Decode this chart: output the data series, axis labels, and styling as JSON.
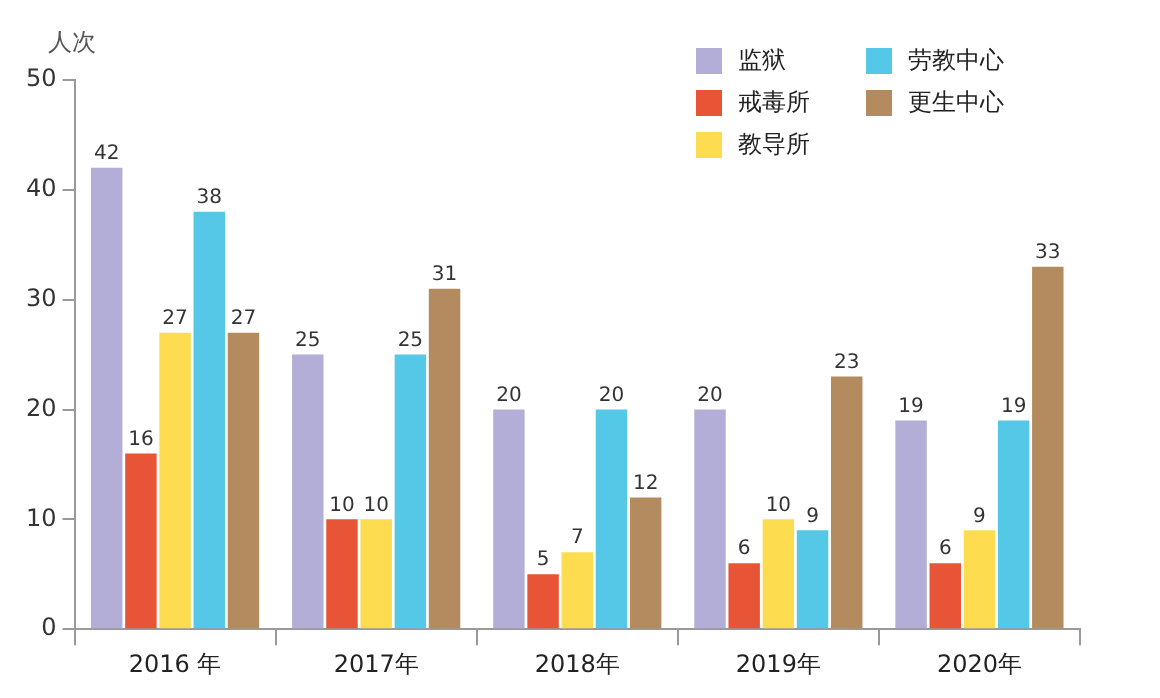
{
  "chart_data": {
    "type": "bar",
    "ylabel": "人次",
    "categories": [
      "2016 年",
      "2017年",
      "2018年",
      "2019年",
      "2020年"
    ],
    "series": [
      {
        "name": "监狱",
        "color": "#b3aed8",
        "values": [
          42,
          25,
          20,
          20,
          19
        ]
      },
      {
        "name": "戒毒所",
        "color": "#e85536",
        "values": [
          16,
          10,
          5,
          6,
          6
        ]
      },
      {
        "name": "教导所",
        "color": "#fddc4f",
        "values": [
          27,
          10,
          7,
          10,
          9
        ]
      },
      {
        "name": "劳教中心",
        "color": "#55c8e8",
        "values": [
          38,
          25,
          20,
          9,
          19
        ]
      },
      {
        "name": "更生中心",
        "color": "#b38b5e",
        "values": [
          27,
          31,
          12,
          23,
          33
        ]
      }
    ],
    "ylim": [
      0,
      50
    ],
    "yticks": [
      0,
      10,
      20,
      30,
      40,
      50
    ],
    "grid": false,
    "legend": "top right",
    "data_labels": true
  }
}
